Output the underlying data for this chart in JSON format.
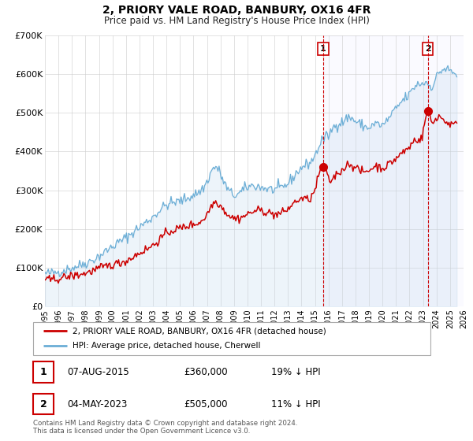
{
  "title": "2, PRIORY VALE ROAD, BANBURY, OX16 4FR",
  "subtitle": "Price paid vs. HM Land Registry's House Price Index (HPI)",
  "ylim": [
    0,
    700000
  ],
  "xlim": [
    1995,
    2026
  ],
  "yticks": [
    0,
    100000,
    200000,
    300000,
    400000,
    500000,
    600000,
    700000
  ],
  "ytick_labels": [
    "£0",
    "£100K",
    "£200K",
    "£300K",
    "£400K",
    "£500K",
    "£600K",
    "£700K"
  ],
  "xticks": [
    1995,
    1996,
    1997,
    1998,
    1999,
    2000,
    2001,
    2002,
    2003,
    2004,
    2005,
    2006,
    2007,
    2008,
    2009,
    2010,
    2011,
    2012,
    2013,
    2014,
    2015,
    2016,
    2017,
    2018,
    2019,
    2020,
    2021,
    2022,
    2023,
    2024,
    2025,
    2026
  ],
  "hpi_color": "#6baed6",
  "hpi_fill_color": "#c6dbef",
  "price_color": "#cc0000",
  "sale1_x": 2015.6,
  "sale1_y": 360000,
  "sale2_x": 2023.35,
  "sale2_y": 505000,
  "sale1_date": "07-AUG-2015",
  "sale1_price": "£360,000",
  "sale1_hpi": "19% ↓ HPI",
  "sale2_date": "04-MAY-2023",
  "sale2_price": "£505,000",
  "sale2_hpi": "11% ↓ HPI",
  "legend_label1": "2, PRIORY VALE ROAD, BANBURY, OX16 4FR (detached house)",
  "legend_label2": "HPI: Average price, detached house, Cherwell",
  "footer1": "Contains HM Land Registry data © Crown copyright and database right 2024.",
  "footer2": "This data is licensed under the Open Government Licence v3.0.",
  "background_color": "#ffffff",
  "grid_color": "#cccccc",
  "hpi_base_points": [
    [
      1995,
      85000
    ],
    [
      1996,
      90000
    ],
    [
      1997,
      100000
    ],
    [
      1998,
      112000
    ],
    [
      1999,
      130000
    ],
    [
      2000,
      155000
    ],
    [
      2001,
      178000
    ],
    [
      2002,
      205000
    ],
    [
      2003,
      232000
    ],
    [
      2004,
      262000
    ],
    [
      2005,
      272000
    ],
    [
      2006,
      288000
    ],
    [
      2007,
      322000
    ],
    [
      2007.6,
      360000
    ],
    [
      2008.2,
      325000
    ],
    [
      2009,
      288000
    ],
    [
      2010,
      308000
    ],
    [
      2011,
      308000
    ],
    [
      2012,
      302000
    ],
    [
      2013,
      318000
    ],
    [
      2014,
      358000
    ],
    [
      2015,
      390000
    ],
    [
      2015.5,
      428000
    ],
    [
      2016,
      442000
    ],
    [
      2016.5,
      468000
    ],
    [
      2017,
      476000
    ],
    [
      2017.5,
      488000
    ],
    [
      2018,
      478000
    ],
    [
      2018.5,
      468000
    ],
    [
      2019,
      462000
    ],
    [
      2019.5,
      472000
    ],
    [
      2020,
      468000
    ],
    [
      2020.5,
      488000
    ],
    [
      2021,
      510000
    ],
    [
      2021.5,
      532000
    ],
    [
      2022,
      548000
    ],
    [
      2022.5,
      572000
    ],
    [
      2023.0,
      576000
    ],
    [
      2023.3,
      578000
    ],
    [
      2023.6,
      568000
    ],
    [
      2024.0,
      592000
    ],
    [
      2024.5,
      612000
    ],
    [
      2025.0,
      608000
    ],
    [
      2025.5,
      598000
    ]
  ],
  "price_base_points": [
    [
      1995,
      68000
    ],
    [
      1996,
      72000
    ],
    [
      1997,
      79000
    ],
    [
      1998,
      86000
    ],
    [
      1999,
      98000
    ],
    [
      2000,
      108000
    ],
    [
      2001,
      118000
    ],
    [
      2002,
      138000
    ],
    [
      2003,
      158000
    ],
    [
      2004,
      188000
    ],
    [
      2005,
      202000
    ],
    [
      2006,
      212000
    ],
    [
      2007,
      238000
    ],
    [
      2007.5,
      268000
    ],
    [
      2008.2,
      252000
    ],
    [
      2009,
      228000
    ],
    [
      2010,
      238000
    ],
    [
      2011,
      248000
    ],
    [
      2012,
      238000
    ],
    [
      2013,
      252000
    ],
    [
      2014,
      278000
    ],
    [
      2015,
      302000
    ],
    [
      2015.6,
      360000
    ],
    [
      2016.0,
      328000
    ],
    [
      2016.5,
      338000
    ],
    [
      2017,
      352000
    ],
    [
      2017.5,
      368000
    ],
    [
      2018,
      358000
    ],
    [
      2018.5,
      348000
    ],
    [
      2019,
      352000
    ],
    [
      2019.5,
      362000
    ],
    [
      2020,
      358000
    ],
    [
      2020.5,
      368000
    ],
    [
      2021,
      382000
    ],
    [
      2021.5,
      398000
    ],
    [
      2022,
      412000
    ],
    [
      2022.5,
      432000
    ],
    [
      2023.0,
      448000
    ],
    [
      2023.35,
      505000
    ],
    [
      2023.6,
      478000
    ],
    [
      2024.0,
      488000
    ],
    [
      2024.5,
      482000
    ],
    [
      2025.0,
      472000
    ],
    [
      2025.5,
      468000
    ]
  ]
}
